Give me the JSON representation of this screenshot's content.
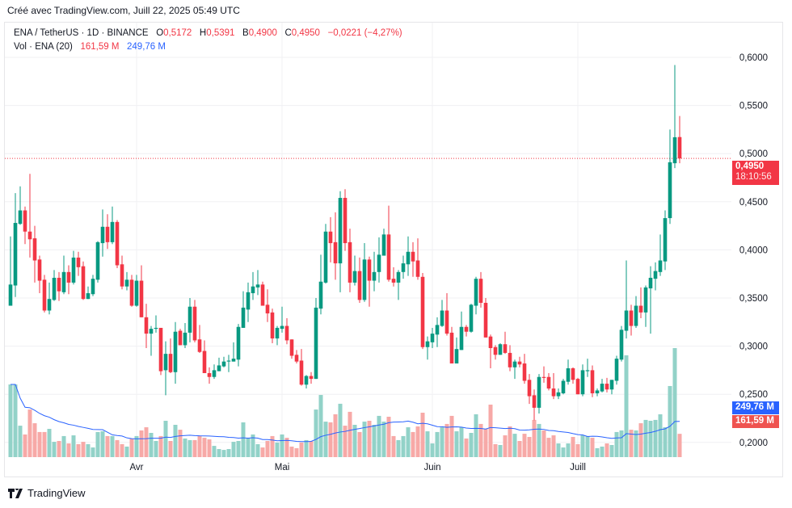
{
  "header": {
    "created": "Créé avec TradingView.com, Juill 22, 2025 05:49 UTC"
  },
  "legend": {
    "symbol": "ENA / TetherUS · 1D · BINANCE",
    "o_label": "O",
    "o": "0,5172",
    "h_label": "H",
    "h": "0,5391",
    "l_label": "B",
    "l": "0,4900",
    "c_label": "C",
    "c": "0,4950",
    "change": "−0,0221 (−4,27%)",
    "vol_label": "Vol · ENA (20)",
    "vol": "161,59 M",
    "vol_ma": "249,76 M"
  },
  "price_tag": {
    "price": "0,4950",
    "countdown": "18:10:56"
  },
  "vol_tags": {
    "ma": "249,76 M",
    "vol": "161,59 M"
  },
  "footer": {
    "brand": "TradingView"
  },
  "colors": {
    "up": "#089981",
    "down": "#f23645",
    "up_vol": "#92d2c8",
    "down_vol": "#f7a9a7",
    "ma": "#2962ff",
    "grid": "#f0f0f3"
  },
  "chart_data": {
    "type": "candlestick",
    "symbol": "ENA / TetherUS",
    "interval": "1D",
    "y_ticks": [
      "0,6000",
      "0,5500",
      "0,5000",
      "0,4500",
      "0,4000",
      "0,3500",
      "0,3000",
      "0,2500",
      "0,2000"
    ],
    "y_tick_values": [
      0.6,
      0.55,
      0.5,
      0.45,
      0.4,
      0.35,
      0.3,
      0.25,
      0.2
    ],
    "x_ticks": [
      {
        "label": "Avr",
        "date": "2025-04-01"
      },
      {
        "label": "Mai",
        "date": "2025-05-01"
      },
      {
        "label": "Juin",
        "date": "2025-06-01"
      },
      {
        "label": "Juill",
        "date": "2025-07-01"
      }
    ],
    "grid": true,
    "volume_ma_period": 20,
    "last_price": 0.495,
    "columns": [
      "date",
      "open",
      "high",
      "low",
      "close",
      "volume_M"
    ],
    "candles": [
      [
        "2025-03-06",
        0.342,
        0.414,
        0.342,
        0.364,
        504
      ],
      [
        "2025-03-07",
        0.363,
        0.459,
        0.351,
        0.428,
        504
      ],
      [
        "2025-03-08",
        0.427,
        0.466,
        0.426,
        0.441,
        218
      ],
      [
        "2025-03-09",
        0.441,
        0.445,
        0.406,
        0.419,
        157
      ],
      [
        "2025-03-10",
        0.419,
        0.479,
        0.392,
        0.411,
        330
      ],
      [
        "2025-03-11",
        0.412,
        0.425,
        0.366,
        0.389,
        235
      ],
      [
        "2025-03-12",
        0.39,
        0.394,
        0.355,
        0.368,
        174
      ],
      [
        "2025-03-13",
        0.369,
        0.374,
        0.335,
        0.337,
        174
      ],
      [
        "2025-03-14",
        0.337,
        0.366,
        0.333,
        0.349,
        196
      ],
      [
        "2025-03-15",
        0.348,
        0.379,
        0.347,
        0.371,
        106
      ],
      [
        "2025-03-16",
        0.371,
        0.377,
        0.347,
        0.357,
        112
      ],
      [
        "2025-03-17",
        0.356,
        0.394,
        0.354,
        0.377,
        146
      ],
      [
        "2025-03-18",
        0.377,
        0.384,
        0.354,
        0.366,
        95
      ],
      [
        "2025-03-19",
        0.366,
        0.399,
        0.364,
        0.392,
        151
      ],
      [
        "2025-03-20",
        0.392,
        0.398,
        0.373,
        0.382,
        90
      ],
      [
        "2025-03-21",
        0.383,
        0.388,
        0.348,
        0.349,
        106
      ],
      [
        "2025-03-22",
        0.349,
        0.362,
        0.349,
        0.355,
        90
      ],
      [
        "2025-03-23",
        0.354,
        0.374,
        0.352,
        0.37,
        67
      ],
      [
        "2025-03-24",
        0.369,
        0.409,
        0.366,
        0.408,
        174
      ],
      [
        "2025-03-25",
        0.407,
        0.442,
        0.393,
        0.424,
        179
      ],
      [
        "2025-03-26",
        0.424,
        0.437,
        0.401,
        0.408,
        146
      ],
      [
        "2025-03-27",
        0.408,
        0.445,
        0.406,
        0.429,
        146
      ],
      [
        "2025-03-28",
        0.429,
        0.431,
        0.381,
        0.384,
        118
      ],
      [
        "2025-03-29",
        0.385,
        0.394,
        0.359,
        0.362,
        90
      ],
      [
        "2025-03-30",
        0.362,
        0.377,
        0.358,
        0.369,
        73
      ],
      [
        "2025-03-31",
        0.369,
        0.374,
        0.341,
        0.342,
        129
      ],
      [
        "2025-04-01",
        0.342,
        0.374,
        0.341,
        0.368,
        146
      ],
      [
        "2025-04-02",
        0.368,
        0.384,
        0.33,
        0.33,
        185
      ],
      [
        "2025-04-03",
        0.33,
        0.344,
        0.298,
        0.313,
        207
      ],
      [
        "2025-04-04",
        0.313,
        0.321,
        0.29,
        0.318,
        168
      ],
      [
        "2025-04-05",
        0.318,
        0.332,
        0.314,
        0.319,
        112
      ],
      [
        "2025-04-06",
        0.319,
        0.319,
        0.27,
        0.274,
        146
      ],
      [
        "2025-04-07",
        0.275,
        0.305,
        0.249,
        0.292,
        252
      ],
      [
        "2025-04-08",
        0.292,
        0.308,
        0.272,
        0.273,
        112
      ],
      [
        "2025-04-09",
        0.273,
        0.325,
        0.261,
        0.315,
        224
      ],
      [
        "2025-04-10",
        0.316,
        0.318,
        0.301,
        0.301,
        190
      ],
      [
        "2025-04-11",
        0.301,
        0.324,
        0.298,
        0.314,
        129
      ],
      [
        "2025-04-12",
        0.314,
        0.35,
        0.304,
        0.341,
        118
      ],
      [
        "2025-04-13",
        0.341,
        0.348,
        0.304,
        0.306,
        118
      ],
      [
        "2025-04-14",
        0.307,
        0.322,
        0.293,
        0.294,
        146
      ],
      [
        "2025-04-15",
        0.295,
        0.306,
        0.272,
        0.272,
        134
      ],
      [
        "2025-04-16",
        0.272,
        0.278,
        0.261,
        0.268,
        123
      ],
      [
        "2025-04-17",
        0.268,
        0.281,
        0.266,
        0.275,
        78
      ],
      [
        "2025-04-18",
        0.274,
        0.288,
        0.274,
        0.28,
        56
      ],
      [
        "2025-04-19",
        0.279,
        0.289,
        0.278,
        0.284,
        50
      ],
      [
        "2025-04-20",
        0.284,
        0.291,
        0.273,
        0.285,
        56
      ],
      [
        "2025-04-21",
        0.284,
        0.304,
        0.284,
        0.287,
        106
      ],
      [
        "2025-04-22",
        0.286,
        0.323,
        0.279,
        0.32,
        112
      ],
      [
        "2025-04-23",
        0.319,
        0.357,
        0.319,
        0.34,
        241
      ],
      [
        "2025-04-24",
        0.338,
        0.366,
        0.325,
        0.356,
        134
      ],
      [
        "2025-04-25",
        0.355,
        0.377,
        0.348,
        0.362,
        157
      ],
      [
        "2025-04-26",
        0.361,
        0.379,
        0.353,
        0.364,
        90
      ],
      [
        "2025-04-27",
        0.364,
        0.367,
        0.342,
        0.342,
        67
      ],
      [
        "2025-04-28",
        0.343,
        0.359,
        0.325,
        0.334,
        112
      ],
      [
        "2025-04-29",
        0.335,
        0.339,
        0.303,
        0.308,
        146
      ],
      [
        "2025-04-30",
        0.308,
        0.321,
        0.301,
        0.319,
        101
      ],
      [
        "2025-05-01",
        0.318,
        0.341,
        0.314,
        0.321,
        157
      ],
      [
        "2025-05-02",
        0.321,
        0.329,
        0.302,
        0.306,
        134
      ],
      [
        "2025-05-03",
        0.307,
        0.307,
        0.287,
        0.29,
        73
      ],
      [
        "2025-05-04",
        0.291,
        0.296,
        0.282,
        0.284,
        62
      ],
      [
        "2025-05-05",
        0.285,
        0.297,
        0.259,
        0.26,
        101
      ],
      [
        "2025-05-06",
        0.26,
        0.27,
        0.256,
        0.269,
        118
      ],
      [
        "2025-05-07",
        0.269,
        0.273,
        0.261,
        0.266,
        112
      ],
      [
        "2025-05-08",
        0.266,
        0.35,
        0.266,
        0.34,
        330
      ],
      [
        "2025-05-09",
        0.339,
        0.395,
        0.333,
        0.367,
        431
      ],
      [
        "2025-05-10",
        0.366,
        0.427,
        0.365,
        0.419,
        246
      ],
      [
        "2025-05-11",
        0.419,
        0.434,
        0.387,
        0.407,
        241
      ],
      [
        "2025-05-12",
        0.408,
        0.439,
        0.369,
        0.386,
        297
      ],
      [
        "2025-05-13",
        0.386,
        0.461,
        0.356,
        0.454,
        370
      ],
      [
        "2025-05-14",
        0.454,
        0.463,
        0.399,
        0.407,
        218
      ],
      [
        "2025-05-15",
        0.408,
        0.422,
        0.356,
        0.366,
        314
      ],
      [
        "2025-05-16",
        0.366,
        0.394,
        0.363,
        0.378,
        224
      ],
      [
        "2025-05-17",
        0.378,
        0.392,
        0.345,
        0.348,
        174
      ],
      [
        "2025-05-18",
        0.348,
        0.407,
        0.346,
        0.39,
        246
      ],
      [
        "2025-05-19",
        0.39,
        0.393,
        0.341,
        0.368,
        252
      ],
      [
        "2025-05-20",
        0.368,
        0.398,
        0.357,
        0.377,
        224
      ],
      [
        "2025-05-21",
        0.377,
        0.413,
        0.366,
        0.395,
        286
      ],
      [
        "2025-05-22",
        0.394,
        0.422,
        0.394,
        0.416,
        246
      ],
      [
        "2025-05-23",
        0.416,
        0.446,
        0.367,
        0.369,
        280
      ],
      [
        "2025-05-24",
        0.37,
        0.382,
        0.362,
        0.366,
        146
      ],
      [
        "2025-05-25",
        0.366,
        0.379,
        0.348,
        0.377,
        118
      ],
      [
        "2025-05-26",
        0.377,
        0.394,
        0.37,
        0.386,
        146
      ],
      [
        "2025-05-27",
        0.385,
        0.414,
        0.373,
        0.398,
        207
      ],
      [
        "2025-05-28",
        0.398,
        0.408,
        0.372,
        0.388,
        174
      ],
      [
        "2025-05-29",
        0.389,
        0.412,
        0.369,
        0.372,
        213
      ],
      [
        "2025-05-30",
        0.372,
        0.376,
        0.297,
        0.299,
        308
      ],
      [
        "2025-05-31",
        0.299,
        0.31,
        0.286,
        0.305,
        179
      ],
      [
        "2025-06-01",
        0.304,
        0.319,
        0.298,
        0.313,
        95
      ],
      [
        "2025-06-02",
        0.312,
        0.33,
        0.299,
        0.322,
        174
      ],
      [
        "2025-06-03",
        0.321,
        0.348,
        0.32,
        0.337,
        207
      ],
      [
        "2025-06-04",
        0.337,
        0.355,
        0.311,
        0.313,
        230
      ],
      [
        "2025-06-05",
        0.314,
        0.32,
        0.282,
        0.282,
        286
      ],
      [
        "2025-06-06",
        0.282,
        0.309,
        0.282,
        0.297,
        179
      ],
      [
        "2025-06-07",
        0.296,
        0.336,
        0.296,
        0.32,
        207
      ],
      [
        "2025-06-08",
        0.32,
        0.322,
        0.31,
        0.315,
        129
      ],
      [
        "2025-06-09",
        0.315,
        0.344,
        0.314,
        0.343,
        168
      ],
      [
        "2025-06-10",
        0.342,
        0.372,
        0.333,
        0.37,
        297
      ],
      [
        "2025-06-11",
        0.37,
        0.377,
        0.34,
        0.345,
        230
      ],
      [
        "2025-06-12",
        0.345,
        0.35,
        0.309,
        0.309,
        196
      ],
      [
        "2025-06-13",
        0.31,
        0.312,
        0.277,
        0.298,
        364
      ],
      [
        "2025-06-14",
        0.299,
        0.301,
        0.286,
        0.291,
        90
      ],
      [
        "2025-06-15",
        0.291,
        0.303,
        0.291,
        0.302,
        84
      ],
      [
        "2025-06-16",
        0.302,
        0.315,
        0.292,
        0.293,
        151
      ],
      [
        "2025-06-17",
        0.293,
        0.301,
        0.274,
        0.278,
        213
      ],
      [
        "2025-06-18",
        0.278,
        0.286,
        0.266,
        0.284,
        162
      ],
      [
        "2025-06-19",
        0.284,
        0.289,
        0.278,
        0.281,
        112
      ],
      [
        "2025-06-20",
        0.282,
        0.292,
        0.261,
        0.264,
        162
      ],
      [
        "2025-06-21",
        0.265,
        0.271,
        0.24,
        0.248,
        140
      ],
      [
        "2025-06-22",
        0.249,
        0.255,
        0.223,
        0.236,
        258
      ],
      [
        "2025-06-23",
        0.236,
        0.271,
        0.23,
        0.268,
        230
      ],
      [
        "2025-06-24",
        0.268,
        0.279,
        0.262,
        0.267,
        185
      ],
      [
        "2025-06-25",
        0.268,
        0.272,
        0.254,
        0.256,
        134
      ],
      [
        "2025-06-26",
        0.256,
        0.272,
        0.245,
        0.248,
        151
      ],
      [
        "2025-06-27",
        0.248,
        0.256,
        0.245,
        0.252,
        95
      ],
      [
        "2025-06-28",
        0.251,
        0.266,
        0.25,
        0.264,
        67
      ],
      [
        "2025-06-29",
        0.263,
        0.286,
        0.26,
        0.277,
        95
      ],
      [
        "2025-06-30",
        0.277,
        0.278,
        0.261,
        0.265,
        140
      ],
      [
        "2025-07-01",
        0.266,
        0.267,
        0.25,
        0.25,
        90
      ],
      [
        "2025-07-02",
        0.25,
        0.281,
        0.248,
        0.275,
        151
      ],
      [
        "2025-07-03",
        0.274,
        0.287,
        0.268,
        0.275,
        146
      ],
      [
        "2025-07-04",
        0.275,
        0.28,
        0.247,
        0.251,
        134
      ],
      [
        "2025-07-05",
        0.251,
        0.256,
        0.248,
        0.254,
        62
      ],
      [
        "2025-07-06",
        0.253,
        0.266,
        0.252,
        0.261,
        73
      ],
      [
        "2025-07-07",
        0.261,
        0.267,
        0.252,
        0.255,
        95
      ],
      [
        "2025-07-08",
        0.255,
        0.265,
        0.25,
        0.265,
        84
      ],
      [
        "2025-07-09",
        0.264,
        0.29,
        0.26,
        0.287,
        174
      ],
      [
        "2025-07-10",
        0.286,
        0.321,
        0.284,
        0.317,
        185
      ],
      [
        "2025-07-11",
        0.316,
        0.389,
        0.308,
        0.337,
        706
      ],
      [
        "2025-07-12",
        0.337,
        0.343,
        0.311,
        0.321,
        190
      ],
      [
        "2025-07-13",
        0.321,
        0.352,
        0.319,
        0.342,
        185
      ],
      [
        "2025-07-14",
        0.342,
        0.361,
        0.329,
        0.335,
        235
      ],
      [
        "2025-07-15",
        0.335,
        0.363,
        0.32,
        0.361,
        258
      ],
      [
        "2025-07-16",
        0.36,
        0.383,
        0.313,
        0.371,
        252
      ],
      [
        "2025-07-17",
        0.37,
        0.387,
        0.358,
        0.378,
        258
      ],
      [
        "2025-07-18",
        0.377,
        0.416,
        0.373,
        0.389,
        297
      ],
      [
        "2025-07-19",
        0.388,
        0.441,
        0.379,
        0.433,
        207
      ],
      [
        "2025-07-20",
        0.433,
        0.525,
        0.427,
        0.491,
        493
      ],
      [
        "2025-07-21",
        0.49,
        0.592,
        0.485,
        0.517,
        756
      ],
      [
        "2025-07-22",
        0.5172,
        0.5391,
        0.49,
        0.495,
        161.59
      ]
    ]
  }
}
